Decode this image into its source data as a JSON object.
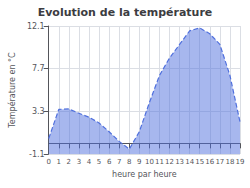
{
  "chart_data": {
    "type": "area",
    "title": "Evolution de la température",
    "xlabel": "heure par heure",
    "ylabel": "Température en °C",
    "x": [
      0,
      1,
      2,
      3,
      4,
      5,
      6,
      7,
      8,
      9,
      10,
      11,
      12,
      13,
      14,
      15,
      16,
      17,
      18,
      19
    ],
    "values": [
      0.5,
      3.5,
      3.55,
      3.1,
      2.7,
      2.1,
      1.2,
      0.2,
      -0.6,
      1.2,
      4.2,
      7.0,
      8.8,
      10.2,
      11.6,
      11.9,
      11.3,
      10.2,
      7.0,
      2.2
    ],
    "xlim": [
      0,
      19
    ],
    "xticks": [
      0,
      1,
      2,
      3,
      4,
      5,
      6,
      7,
      8,
      9,
      10,
      11,
      12,
      13,
      14,
      15,
      16,
      17,
      18,
      19
    ],
    "ylim": [
      -1.1,
      12.1
    ],
    "yticks": [
      -1.1,
      3.3,
      7.7,
      12.1
    ],
    "line_style": "dashed",
    "grid": true
  }
}
